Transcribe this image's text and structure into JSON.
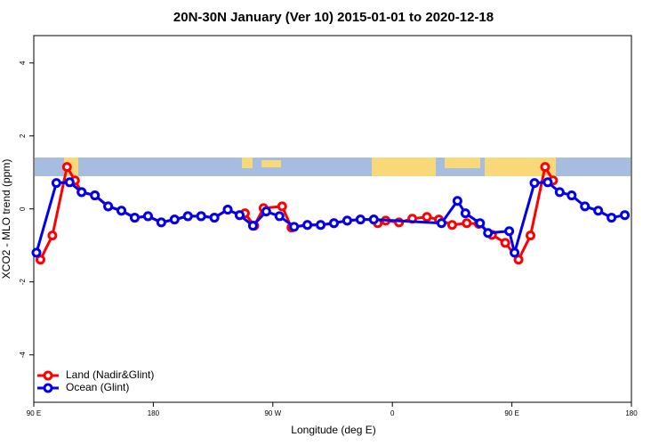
{
  "chart_data": {
    "type": "line",
    "title": "20N-30N January (Ver 10)   2015-01-01 to 2020-12-18",
    "x_label": "Longitude (deg E)",
    "y_label": "XCO2 - MLO trend (ppm)",
    "xlim": [
      90,
      540
    ],
    "ylim": [
      -5.3,
      4.75
    ],
    "xticks": [
      {
        "value": 90,
        "label": "90 E"
      },
      180,
      {
        "value": 270,
        "label": "90 W"
      },
      {
        "value": 360,
        "label": "0"
      },
      {
        "value": 450,
        "label": "90 E"
      },
      {
        "value": 540,
        "label": "180"
      }
    ],
    "yticks": [
      -4,
      -2,
      0,
      2,
      4
    ],
    "legend": "bottom-left",
    "series": [
      {
        "name": "Land (Nadir&Glint)",
        "color": "#ff0000",
        "x": [
          95,
          104,
          115,
          121,
          126,
          136,
          146,
          156,
          166,
          176,
          186,
          196,
          206,
          216,
          226,
          236,
          245,
          249,
          256,
          263,
          277,
          284,
          296,
          306,
          316,
          326,
          336,
          346,
          349,
          355,
          365,
          375,
          386,
          395,
          405,
          416,
          425,
          435,
          445,
          455,
          464,
          475,
          481
        ],
        "values": [
          -1.39,
          -0.73,
          1.15,
          0.78,
          0.46,
          0.37,
          0.07,
          -0.05,
          -0.24,
          -0.2,
          -0.37,
          -0.29,
          -0.2,
          -0.2,
          -0.24,
          -0.02,
          -0.17,
          -0.12,
          -0.46,
          0.02,
          0.07,
          -0.51,
          -0.44,
          -0.44,
          -0.39,
          -0.32,
          -0.29,
          -0.29,
          -0.39,
          -0.32,
          -0.37,
          -0.27,
          -0.22,
          -0.29,
          -0.44,
          -0.39,
          -0.41,
          -0.71,
          -0.93,
          -1.39,
          -0.73,
          1.15,
          0.78
        ]
      },
      {
        "name": "Ocean (Glint)",
        "color": "#0000ee",
        "x": [
          92,
          107,
          117,
          126,
          136,
          146,
          156,
          166,
          176,
          186,
          196,
          206,
          216,
          226,
          236,
          245,
          255,
          265,
          275,
          286,
          296,
          306,
          316,
          326,
          336,
          346,
          397,
          409,
          415,
          426,
          432,
          448,
          452,
          467,
          477,
          486,
          495,
          505,
          515,
          525,
          535
        ],
        "values": [
          -1.2,
          0.71,
          0.73,
          0.46,
          0.37,
          0.07,
          -0.05,
          -0.24,
          -0.2,
          -0.37,
          -0.29,
          -0.2,
          -0.2,
          -0.24,
          -0.02,
          -0.17,
          -0.46,
          -0.07,
          -0.2,
          -0.49,
          -0.44,
          -0.44,
          -0.39,
          -0.32,
          -0.29,
          -0.29,
          -0.39,
          0.22,
          -0.12,
          -0.39,
          -0.66,
          -0.61,
          -1.2,
          0.71,
          0.73,
          0.46,
          0.37,
          0.07,
          -0.05,
          -0.24,
          -0.17
        ]
      }
    ]
  }
}
